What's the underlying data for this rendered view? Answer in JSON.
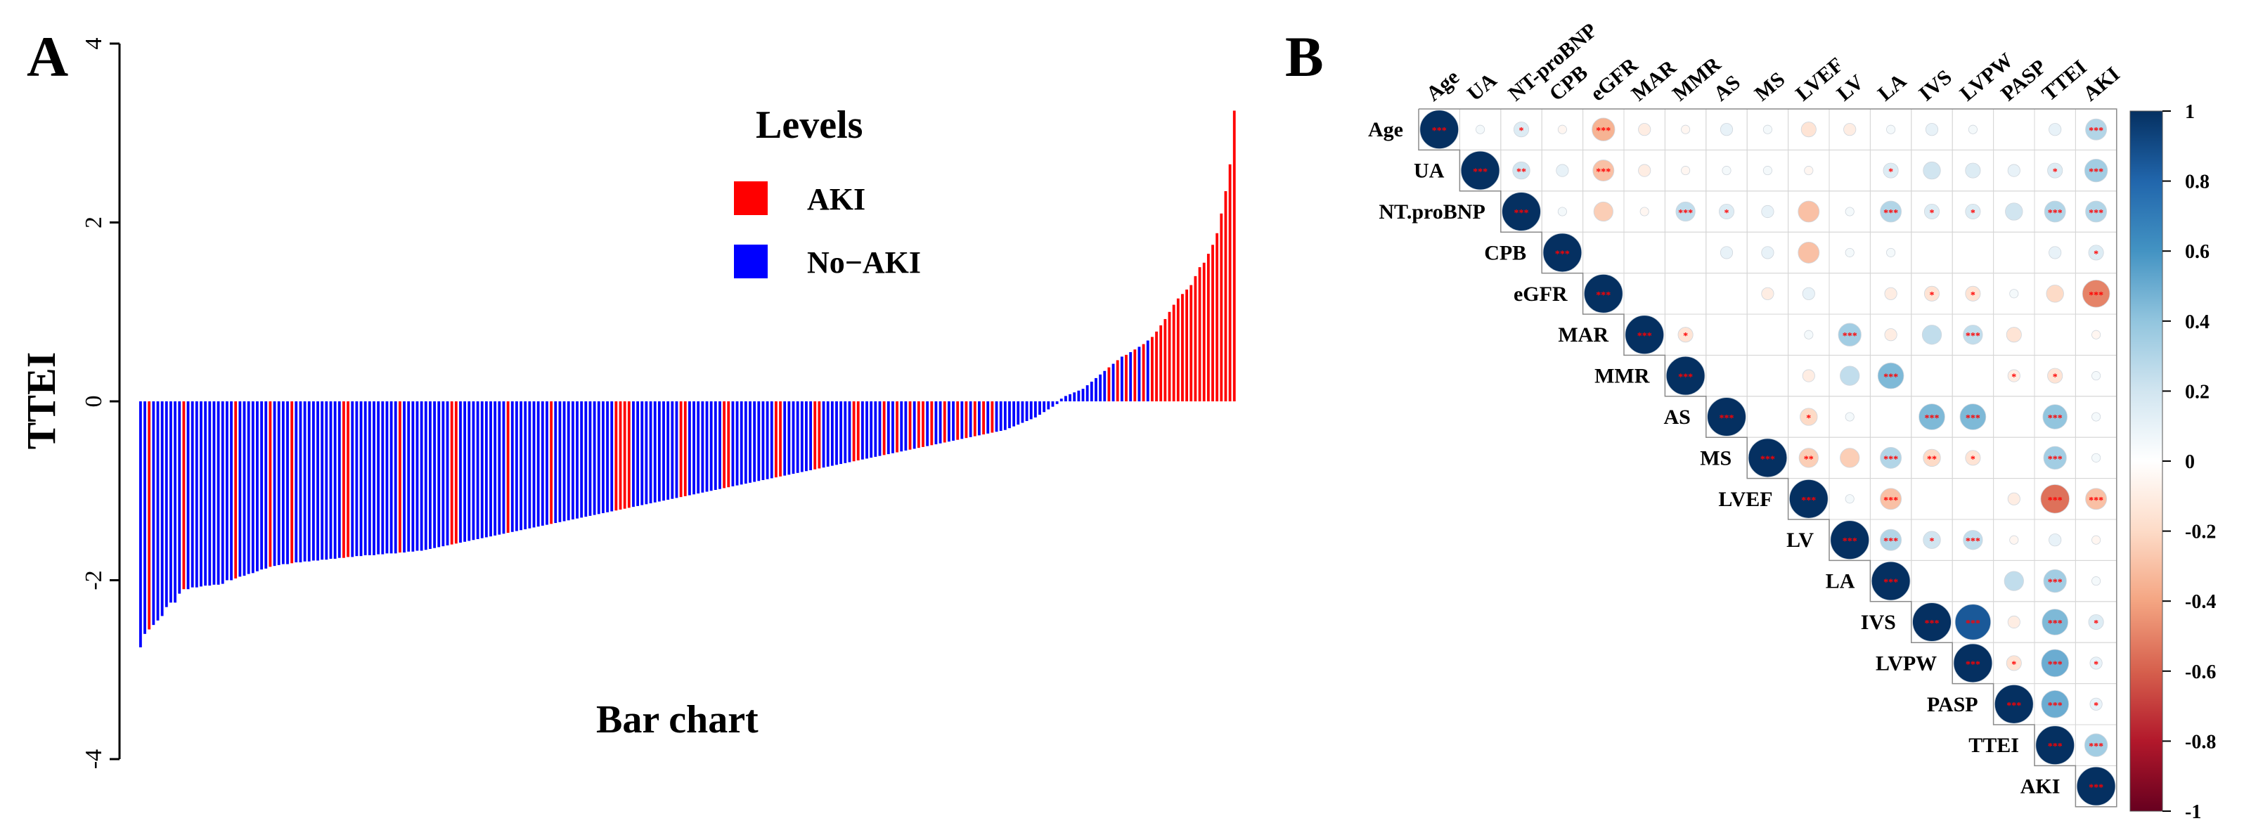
{
  "panel_a": {
    "label": "A",
    "chart_data": {
      "type": "bar",
      "title": "Bar chart",
      "xlabel": "",
      "ylabel": "TTEI",
      "ylim": [
        -4,
        4
      ],
      "yticks": [
        "4",
        "2",
        "0",
        "-2",
        "-4"
      ],
      "ytick_values": [
        4,
        2,
        0,
        -2,
        -4
      ],
      "grid": false,
      "legend": {
        "title": "Levels",
        "placement": "top-right",
        "entries": [
          "AKI",
          "No−AKI"
        ]
      },
      "colors": {
        "AKI": "#ff0000",
        "No-AKI": "#0000ff"
      },
      "values": [
        -2.75,
        -2.6,
        -2.55,
        -2.5,
        -2.45,
        -2.4,
        -2.3,
        -2.25,
        -2.25,
        -2.15,
        -2.1,
        -2.1,
        -2.08,
        -2.08,
        -2.07,
        -2.06,
        -2.06,
        -2.05,
        -2.05,
        -2.04,
        -2.0,
        -2.0,
        -1.98,
        -1.96,
        -1.95,
        -1.93,
        -1.92,
        -1.9,
        -1.88,
        -1.87,
        -1.85,
        -1.84,
        -1.83,
        -1.82,
        -1.82,
        -1.81,
        -1.8,
        -1.8,
        -1.79,
        -1.79,
        -1.78,
        -1.78,
        -1.77,
        -1.77,
        -1.76,
        -1.76,
        -1.75,
        -1.75,
        -1.74,
        -1.74,
        -1.73,
        -1.73,
        -1.72,
        -1.72,
        -1.72,
        -1.71,
        -1.71,
        -1.7,
        -1.7,
        -1.7,
        -1.69,
        -1.69,
        -1.68,
        -1.68,
        -1.67,
        -1.67,
        -1.66,
        -1.65,
        -1.64,
        -1.63,
        -1.62,
        -1.61,
        -1.6,
        -1.59,
        -1.58,
        -1.57,
        -1.56,
        -1.55,
        -1.54,
        -1.53,
        -1.52,
        -1.51,
        -1.5,
        -1.49,
        -1.48,
        -1.47,
        -1.46,
        -1.45,
        -1.44,
        -1.43,
        -1.42,
        -1.41,
        -1.4,
        -1.39,
        -1.38,
        -1.37,
        -1.36,
        -1.35,
        -1.34,
        -1.33,
        -1.32,
        -1.31,
        -1.3,
        -1.29,
        -1.28,
        -1.27,
        -1.26,
        -1.25,
        -1.24,
        -1.23,
        -1.22,
        -1.21,
        -1.2,
        -1.19,
        -1.18,
        -1.17,
        -1.16,
        -1.15,
        -1.14,
        -1.13,
        -1.12,
        -1.11,
        -1.1,
        -1.09,
        -1.08,
        -1.07,
        -1.06,
        -1.05,
        -1.04,
        -1.03,
        -1.02,
        -1.01,
        -1.0,
        -0.99,
        -0.98,
        -0.97,
        -0.96,
        -0.95,
        -0.94,
        -0.93,
        -0.92,
        -0.91,
        -0.9,
        -0.89,
        -0.88,
        -0.87,
        -0.86,
        -0.85,
        -0.84,
        -0.83,
        -0.82,
        -0.81,
        -0.8,
        -0.79,
        -0.78,
        -0.77,
        -0.76,
        -0.75,
        -0.74,
        -0.73,
        -0.72,
        -0.71,
        -0.7,
        -0.69,
        -0.68,
        -0.67,
        -0.66,
        -0.65,
        -0.64,
        -0.63,
        -0.62,
        -0.61,
        -0.6,
        -0.59,
        -0.58,
        -0.57,
        -0.56,
        -0.55,
        -0.54,
        -0.53,
        -0.52,
        -0.51,
        -0.5,
        -0.49,
        -0.48,
        -0.47,
        -0.46,
        -0.45,
        -0.44,
        -0.43,
        -0.42,
        -0.41,
        -0.4,
        -0.39,
        -0.38,
        -0.37,
        -0.36,
        -0.35,
        -0.34,
        -0.33,
        -0.32,
        -0.3,
        -0.28,
        -0.26,
        -0.24,
        -0.22,
        -0.2,
        -0.18,
        -0.15,
        -0.12,
        -0.09,
        -0.06,
        -0.03,
        0.03,
        0.06,
        0.08,
        0.1,
        0.12,
        0.14,
        0.18,
        0.22,
        0.26,
        0.3,
        0.34,
        0.38,
        0.42,
        0.46,
        0.5,
        0.52,
        0.55,
        0.58,
        0.61,
        0.64,
        0.68,
        0.72,
        0.78,
        0.85,
        0.92,
        1.0,
        1.08,
        1.15,
        1.2,
        1.25,
        1.3,
        1.4,
        1.5,
        1.55,
        1.65,
        1.75,
        1.88,
        2.1,
        2.35,
        2.65,
        3.25
      ],
      "groups_aki_indices": [
        2,
        10,
        22,
        30,
        35,
        47,
        48,
        60,
        72,
        73,
        85,
        95,
        110,
        111,
        112,
        113,
        125,
        126,
        135,
        136,
        147,
        148,
        156,
        157,
        165,
        166,
        172,
        175,
        178,
        180,
        181,
        183,
        186,
        189,
        191,
        193,
        195,
        197,
        224,
        226,
        228,
        230,
        232,
        234,
        235,
        236,
        237,
        238,
        239,
        240,
        241,
        242,
        243,
        244,
        245,
        246,
        247,
        248,
        249,
        250,
        251,
        252,
        253,
        254,
        255,
        256,
        257,
        258,
        259,
        260,
        261,
        262,
        263,
        264,
        265,
        266,
        267,
        268,
        269,
        270,
        271
      ]
    }
  },
  "panel_b": {
    "label": "B",
    "chart_data": {
      "type": "heatmap",
      "variables": [
        "Age",
        "UA",
        "NT-proBNP",
        "CPB",
        "eGFR",
        "MAR",
        "MMR",
        "AS",
        "MS",
        "LVEF",
        "LV",
        "LA",
        "IVS",
        "LVPW",
        "PASP",
        "TTEI",
        "AKI"
      ],
      "row_labels": [
        "Age",
        "UA",
        "NT.proBNP",
        "CPB",
        "eGFR",
        "MAR",
        "MMR",
        "AS",
        "MS",
        "LVEF",
        "LV",
        "LA",
        "IVS",
        "LVPW",
        "PASP",
        "TTEI",
        "AKI"
      ],
      "layout": "upper-triangle",
      "colorbar": {
        "min": -1,
        "max": 1,
        "ticks": [
          "1",
          "0.8",
          "0.6",
          "0.4",
          "0.2",
          "0",
          "-0.2",
          "-0.4",
          "-0.6",
          "-0.8",
          "-1"
        ],
        "tick_values": [
          1,
          0.8,
          0.6,
          0.4,
          0.2,
          0,
          -0.2,
          -0.4,
          -0.6,
          -0.8,
          -1
        ]
      },
      "colors": {
        "negative": "#67001f",
        "neutral": "#ffffff",
        "positive": "#053061",
        "significance_mark": "#ff0000"
      },
      "cells": [
        {
          "r": 0,
          "c": 0,
          "v": 1.0,
          "sig": "***"
        },
        {
          "r": 0,
          "c": 1,
          "v": 0.05,
          "sig": ""
        },
        {
          "r": 0,
          "c": 2,
          "v": 0.15,
          "sig": "*"
        },
        {
          "r": 0,
          "c": 3,
          "v": -0.05,
          "sig": ""
        },
        {
          "r": 0,
          "c": 4,
          "v": -0.35,
          "sig": "***"
        },
        {
          "r": 0,
          "c": 5,
          "v": -0.1,
          "sig": ""
        },
        {
          "r": 0,
          "c": 6,
          "v": -0.05,
          "sig": ""
        },
        {
          "r": 0,
          "c": 7,
          "v": 0.1,
          "sig": ""
        },
        {
          "r": 0,
          "c": 8,
          "v": 0.05,
          "sig": ""
        },
        {
          "r": 0,
          "c": 9,
          "v": -0.15,
          "sig": ""
        },
        {
          "r": 0,
          "c": 10,
          "v": -0.1,
          "sig": ""
        },
        {
          "r": 0,
          "c": 11,
          "v": 0.05,
          "sig": ""
        },
        {
          "r": 0,
          "c": 12,
          "v": 0.1,
          "sig": ""
        },
        {
          "r": 0,
          "c": 13,
          "v": 0.05,
          "sig": ""
        },
        {
          "r": 0,
          "c": 15,
          "v": 0.1,
          "sig": ""
        },
        {
          "r": 0,
          "c": 16,
          "v": 0.3,
          "sig": "***"
        },
        {
          "r": 1,
          "c": 1,
          "v": 1.0,
          "sig": "***"
        },
        {
          "r": 1,
          "c": 2,
          "v": 0.2,
          "sig": "**"
        },
        {
          "r": 1,
          "c": 3,
          "v": 0.1,
          "sig": ""
        },
        {
          "r": 1,
          "c": 4,
          "v": -0.3,
          "sig": "***"
        },
        {
          "r": 1,
          "c": 5,
          "v": -0.1,
          "sig": ""
        },
        {
          "r": 1,
          "c": 6,
          "v": -0.05,
          "sig": ""
        },
        {
          "r": 1,
          "c": 7,
          "v": 0.05,
          "sig": ""
        },
        {
          "r": 1,
          "c": 8,
          "v": 0.05,
          "sig": ""
        },
        {
          "r": 1,
          "c": 9,
          "v": -0.05,
          "sig": ""
        },
        {
          "r": 1,
          "c": 11,
          "v": 0.15,
          "sig": "*"
        },
        {
          "r": 1,
          "c": 12,
          "v": 0.2,
          "sig": ""
        },
        {
          "r": 1,
          "c": 13,
          "v": 0.15,
          "sig": ""
        },
        {
          "r": 1,
          "c": 14,
          "v": 0.1,
          "sig": ""
        },
        {
          "r": 1,
          "c": 15,
          "v": 0.15,
          "sig": "*"
        },
        {
          "r": 1,
          "c": 16,
          "v": 0.35,
          "sig": "***"
        },
        {
          "r": 2,
          "c": 2,
          "v": 1.0,
          "sig": "***"
        },
        {
          "r": 2,
          "c": 3,
          "v": 0.05,
          "sig": ""
        },
        {
          "r": 2,
          "c": 4,
          "v": -0.25,
          "sig": ""
        },
        {
          "r": 2,
          "c": 5,
          "v": -0.05,
          "sig": ""
        },
        {
          "r": 2,
          "c": 6,
          "v": 0.25,
          "sig": "***"
        },
        {
          "r": 2,
          "c": 7,
          "v": 0.15,
          "sig": "*"
        },
        {
          "r": 2,
          "c": 8,
          "v": 0.1,
          "sig": ""
        },
        {
          "r": 2,
          "c": 9,
          "v": -0.3,
          "sig": ""
        },
        {
          "r": 2,
          "c": 10,
          "v": 0.05,
          "sig": ""
        },
        {
          "r": 2,
          "c": 11,
          "v": 0.3,
          "sig": "***"
        },
        {
          "r": 2,
          "c": 12,
          "v": 0.15,
          "sig": "*"
        },
        {
          "r": 2,
          "c": 13,
          "v": 0.15,
          "sig": "*"
        },
        {
          "r": 2,
          "c": 14,
          "v": 0.2,
          "sig": ""
        },
        {
          "r": 2,
          "c": 15,
          "v": 0.3,
          "sig": "***"
        },
        {
          "r": 2,
          "c": 16,
          "v": 0.3,
          "sig": "***"
        },
        {
          "r": 3,
          "c": 3,
          "v": 1.0,
          "sig": "***"
        },
        {
          "r": 3,
          "c": 7,
          "v": 0.1,
          "sig": ""
        },
        {
          "r": 3,
          "c": 8,
          "v": 0.1,
          "sig": ""
        },
        {
          "r": 3,
          "c": 9,
          "v": -0.3,
          "sig": ""
        },
        {
          "r": 3,
          "c": 10,
          "v": 0.05,
          "sig": ""
        },
        {
          "r": 3,
          "c": 11,
          "v": 0.05,
          "sig": ""
        },
        {
          "r": 3,
          "c": 15,
          "v": 0.1,
          "sig": ""
        },
        {
          "r": 3,
          "c": 16,
          "v": 0.15,
          "sig": "*"
        },
        {
          "r": 4,
          "c": 4,
          "v": 1.0,
          "sig": "***"
        },
        {
          "r": 4,
          "c": 8,
          "v": -0.1,
          "sig": ""
        },
        {
          "r": 4,
          "c": 9,
          "v": 0.1,
          "sig": ""
        },
        {
          "r": 4,
          "c": 11,
          "v": -0.1,
          "sig": ""
        },
        {
          "r": 4,
          "c": 12,
          "v": -0.15,
          "sig": "*"
        },
        {
          "r": 4,
          "c": 13,
          "v": -0.15,
          "sig": "*"
        },
        {
          "r": 4,
          "c": 14,
          "v": 0.05,
          "sig": ""
        },
        {
          "r": 4,
          "c": 15,
          "v": -0.2,
          "sig": ""
        },
        {
          "r": 4,
          "c": 16,
          "v": -0.5,
          "sig": "***"
        },
        {
          "r": 5,
          "c": 5,
          "v": 1.0,
          "sig": "***"
        },
        {
          "r": 5,
          "c": 6,
          "v": -0.15,
          "sig": "*"
        },
        {
          "r": 5,
          "c": 9,
          "v": 0.05,
          "sig": ""
        },
        {
          "r": 5,
          "c": 10,
          "v": 0.35,
          "sig": "***"
        },
        {
          "r": 5,
          "c": 11,
          "v": -0.1,
          "sig": ""
        },
        {
          "r": 5,
          "c": 12,
          "v": 0.25,
          "sig": ""
        },
        {
          "r": 5,
          "c": 13,
          "v": 0.25,
          "sig": "***"
        },
        {
          "r": 5,
          "c": 14,
          "v": -0.15,
          "sig": ""
        },
        {
          "r": 5,
          "c": 16,
          "v": -0.05,
          "sig": ""
        },
        {
          "r": 6,
          "c": 6,
          "v": 1.0,
          "sig": "***"
        },
        {
          "r": 6,
          "c": 9,
          "v": -0.1,
          "sig": ""
        },
        {
          "r": 6,
          "c": 10,
          "v": 0.25,
          "sig": ""
        },
        {
          "r": 6,
          "c": 11,
          "v": 0.45,
          "sig": "***"
        },
        {
          "r": 6,
          "c": 14,
          "v": -0.1,
          "sig": "*"
        },
        {
          "r": 6,
          "c": 15,
          "v": -0.15,
          "sig": "*"
        },
        {
          "r": 6,
          "c": 16,
          "v": 0.05,
          "sig": ""
        },
        {
          "r": 7,
          "c": 7,
          "v": 1.0,
          "sig": "***"
        },
        {
          "r": 7,
          "c": 9,
          "v": -0.2,
          "sig": "*"
        },
        {
          "r": 7,
          "c": 10,
          "v": 0.05,
          "sig": ""
        },
        {
          "r": 7,
          "c": 12,
          "v": 0.45,
          "sig": "***"
        },
        {
          "r": 7,
          "c": 13,
          "v": 0.45,
          "sig": "***"
        },
        {
          "r": 7,
          "c": 15,
          "v": 0.4,
          "sig": "***"
        },
        {
          "r": 7,
          "c": 16,
          "v": 0.05,
          "sig": ""
        },
        {
          "r": 8,
          "c": 8,
          "v": 1.0,
          "sig": "***"
        },
        {
          "r": 8,
          "c": 9,
          "v": -0.25,
          "sig": "**"
        },
        {
          "r": 8,
          "c": 10,
          "v": -0.25,
          "sig": ""
        },
        {
          "r": 8,
          "c": 11,
          "v": 0.3,
          "sig": "***"
        },
        {
          "r": 8,
          "c": 12,
          "v": -0.2,
          "sig": "**"
        },
        {
          "r": 8,
          "c": 13,
          "v": -0.15,
          "sig": "*"
        },
        {
          "r": 8,
          "c": 15,
          "v": 0.35,
          "sig": "***"
        },
        {
          "r": 8,
          "c": 16,
          "v": 0.05,
          "sig": ""
        },
        {
          "r": 9,
          "c": 9,
          "v": 1.0,
          "sig": "***"
        },
        {
          "r": 9,
          "c": 10,
          "v": 0.05,
          "sig": ""
        },
        {
          "r": 9,
          "c": 11,
          "v": -0.3,
          "sig": "***"
        },
        {
          "r": 9,
          "c": 14,
          "v": -0.1,
          "sig": ""
        },
        {
          "r": 9,
          "c": 15,
          "v": -0.55,
          "sig": "***"
        },
        {
          "r": 9,
          "c": 16,
          "v": -0.3,
          "sig": "***"
        },
        {
          "r": 10,
          "c": 10,
          "v": 1.0,
          "sig": "***"
        },
        {
          "r": 10,
          "c": 11,
          "v": 0.3,
          "sig": "***"
        },
        {
          "r": 10,
          "c": 12,
          "v": 0.2,
          "sig": "*"
        },
        {
          "r": 10,
          "c": 13,
          "v": 0.25,
          "sig": "***"
        },
        {
          "r": 10,
          "c": 14,
          "v": -0.05,
          "sig": ""
        },
        {
          "r": 10,
          "c": 15,
          "v": 0.1,
          "sig": ""
        },
        {
          "r": 10,
          "c": 16,
          "v": -0.05,
          "sig": ""
        },
        {
          "r": 11,
          "c": 11,
          "v": 1.0,
          "sig": "***"
        },
        {
          "r": 11,
          "c": 14,
          "v": 0.25,
          "sig": ""
        },
        {
          "r": 11,
          "c": 15,
          "v": 0.35,
          "sig": "***"
        },
        {
          "r": 11,
          "c": 16,
          "v": 0.05,
          "sig": ""
        },
        {
          "r": 12,
          "c": 12,
          "v": 1.0,
          "sig": "***"
        },
        {
          "r": 12,
          "c": 13,
          "v": 0.85,
          "sig": "***"
        },
        {
          "r": 12,
          "c": 14,
          "v": -0.1,
          "sig": ""
        },
        {
          "r": 12,
          "c": 15,
          "v": 0.45,
          "sig": "***"
        },
        {
          "r": 12,
          "c": 16,
          "v": 0.15,
          "sig": "*"
        },
        {
          "r": 13,
          "c": 13,
          "v": 1.0,
          "sig": "***"
        },
        {
          "r": 13,
          "c": 14,
          "v": -0.15,
          "sig": "*"
        },
        {
          "r": 13,
          "c": 15,
          "v": 0.5,
          "sig": "***"
        },
        {
          "r": 13,
          "c": 16,
          "v": 0.1,
          "sig": "*"
        },
        {
          "r": 14,
          "c": 14,
          "v": 1.0,
          "sig": "***"
        },
        {
          "r": 14,
          "c": 15,
          "v": 0.5,
          "sig": "***"
        },
        {
          "r": 14,
          "c": 16,
          "v": 0.1,
          "sig": "*"
        },
        {
          "r": 15,
          "c": 15,
          "v": 1.0,
          "sig": "***"
        },
        {
          "r": 15,
          "c": 16,
          "v": 0.35,
          "sig": "***"
        },
        {
          "r": 16,
          "c": 16,
          "v": 1.0,
          "sig": "***"
        }
      ]
    }
  }
}
